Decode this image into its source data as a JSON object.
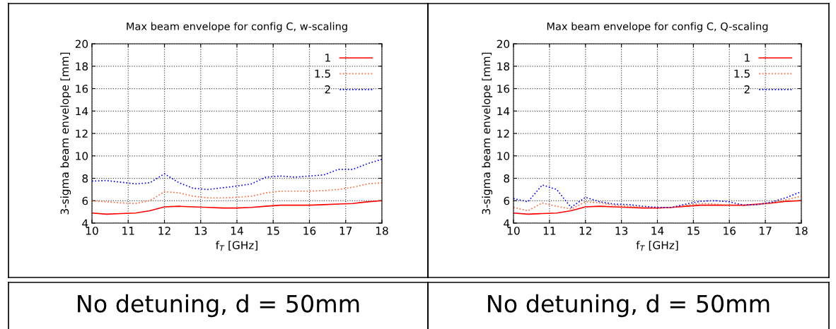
{
  "chart_data": [
    {
      "type": "line",
      "title": "Max beam envelope for config C, w-scaling",
      "xlabel": "f$_{T}$ [GHz]",
      "ylabel": "3-sigma beam envelope [mm]",
      "annotations": [
        "No detuning, d = 50mm"
      ],
      "x": [
        10,
        10.4,
        10.8,
        11.2,
        11.6,
        12,
        12.4,
        12.8,
        13.2,
        13.6,
        14,
        14.4,
        14.8,
        15.2,
        15.6,
        16,
        16.4,
        16.8,
        17.2,
        17.6,
        18
      ],
      "xlim": [
        10,
        18
      ],
      "xticks": [
        10,
        11,
        12,
        13,
        14,
        15,
        16,
        17,
        18
      ],
      "ylim": [
        4,
        20
      ],
      "yticks": [
        4,
        6,
        8,
        10,
        12,
        14,
        16,
        18,
        20
      ],
      "grid": true,
      "legend": "top right",
      "marker": "none",
      "series": [
        {
          "name": "1",
          "color": "#ff0000",
          "line_style": "solid",
          "values": [
            4.9,
            4.8,
            4.85,
            4.9,
            5.1,
            5.45,
            5.5,
            5.45,
            5.4,
            5.35,
            5.35,
            5.4,
            5.5,
            5.6,
            5.6,
            5.6,
            5.65,
            5.7,
            5.75,
            5.9,
            6.0
          ]
        },
        {
          "name": "1.5",
          "color": "#ff6633",
          "line_style": "dotted",
          "values": [
            6.0,
            5.9,
            5.8,
            5.75,
            6.0,
            6.8,
            6.7,
            6.4,
            6.25,
            6.25,
            6.3,
            6.4,
            6.7,
            6.85,
            6.85,
            6.85,
            6.9,
            7.0,
            7.2,
            7.5,
            7.6
          ]
        },
        {
          "name": "2",
          "color": "#0000ff",
          "line_style": "dotted",
          "values": [
            7.75,
            7.8,
            7.65,
            7.5,
            7.6,
            8.4,
            7.6,
            7.1,
            7.0,
            7.15,
            7.3,
            7.5,
            8.1,
            8.2,
            8.1,
            8.2,
            8.3,
            8.8,
            8.8,
            9.3,
            9.7
          ]
        }
      ]
    },
    {
      "type": "line",
      "title": "Max beam envelope for config C, Q-scaling",
      "xlabel": "f$_{T}$ [GHz]",
      "ylabel": "3-sigma beam envelope [mm]",
      "annotations": [
        "No detuning, d = 50mm"
      ],
      "x": [
        10,
        10.4,
        10.8,
        11.2,
        11.6,
        12,
        12.4,
        12.8,
        13.2,
        13.6,
        14,
        14.4,
        14.8,
        15.2,
        15.6,
        16,
        16.4,
        16.8,
        17.2,
        17.6,
        18
      ],
      "xlim": [
        10,
        18
      ],
      "xticks": [
        10,
        11,
        12,
        13,
        14,
        15,
        16,
        17,
        18
      ],
      "ylim": [
        4,
        20
      ],
      "yticks": [
        4,
        6,
        8,
        10,
        12,
        14,
        16,
        18,
        20
      ],
      "grid": true,
      "legend": "top right",
      "marker": "none",
      "series": [
        {
          "name": "1",
          "color": "#ff0000",
          "line_style": "solid",
          "values": [
            4.9,
            4.8,
            4.85,
            4.9,
            5.1,
            5.45,
            5.5,
            5.45,
            5.4,
            5.35,
            5.35,
            5.4,
            5.5,
            5.6,
            5.6,
            5.6,
            5.6,
            5.7,
            5.8,
            5.95,
            6.0
          ]
        },
        {
          "name": "1.5",
          "color": "#ff6633",
          "line_style": "dotted",
          "values": [
            5.4,
            5.1,
            5.8,
            5.5,
            5.25,
            5.9,
            5.8,
            5.6,
            5.5,
            5.4,
            5.35,
            5.4,
            5.6,
            5.75,
            5.7,
            5.6,
            5.55,
            5.65,
            5.8,
            6.1,
            6.4
          ]
        },
        {
          "name": "2",
          "color": "#0000ff",
          "line_style": "dotted",
          "values": [
            6.2,
            5.9,
            7.4,
            7.0,
            5.4,
            6.3,
            5.9,
            5.7,
            5.65,
            5.5,
            5.4,
            5.4,
            5.7,
            5.95,
            6.0,
            5.9,
            5.6,
            5.65,
            5.9,
            6.3,
            6.8
          ]
        }
      ]
    }
  ]
}
